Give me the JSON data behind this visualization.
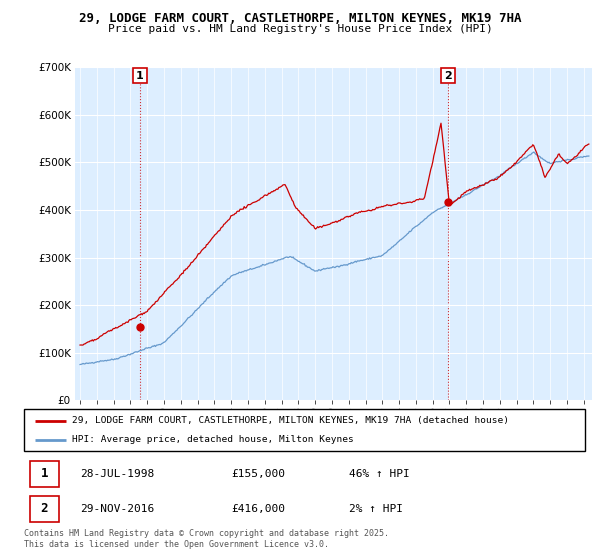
{
  "title1": "29, LODGE FARM COURT, CASTLETHORPE, MILTON KEYNES, MK19 7HA",
  "title2": "Price paid vs. HM Land Registry's House Price Index (HPI)",
  "legend_line1": "29, LODGE FARM COURT, CASTLETHORPE, MILTON KEYNES, MK19 7HA (detached house)",
  "legend_line2": "HPI: Average price, detached house, Milton Keynes",
  "sale1_date": "28-JUL-1998",
  "sale1_price": "£155,000",
  "sale1_hpi": "46% ↑ HPI",
  "sale2_date": "29-NOV-2016",
  "sale2_price": "£416,000",
  "sale2_hpi": "2% ↑ HPI",
  "footer": "Contains HM Land Registry data © Crown copyright and database right 2025.\nThis data is licensed under the Open Government Licence v3.0.",
  "sale1_year": 1998.57,
  "sale1_value": 155000,
  "sale2_year": 2016.91,
  "sale2_value": 416000,
  "red_color": "#cc0000",
  "blue_color": "#6699cc",
  "bg_color": "#ddeeff",
  "ylim": [
    0,
    700000
  ],
  "yticks": [
    0,
    100000,
    200000,
    300000,
    400000,
    500000,
    600000,
    700000
  ],
  "xlim_start": 1994.7,
  "xlim_end": 2025.5
}
